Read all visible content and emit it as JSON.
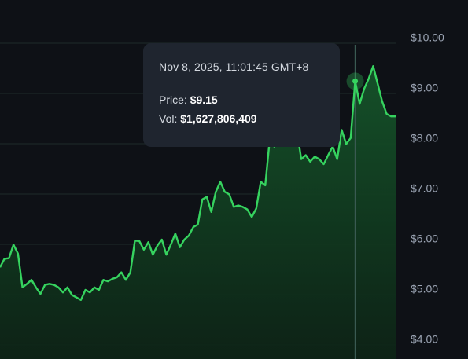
{
  "chart_data": {
    "type": "area",
    "ylim": [
      3.8,
      10.1
    ],
    "y_ticks": [
      "$10.00",
      "$9.00",
      "$8.00",
      "$7.00",
      "$6.00",
      "$5.00",
      "$4.00"
    ],
    "y_tick_values": [
      10,
      9,
      8,
      7,
      6,
      5,
      4
    ],
    "grid": true,
    "series": [
      {
        "values": [
          5.45,
          5.62,
          5.63,
          5.9,
          5.72,
          5.05,
          5.12,
          5.2,
          5.05,
          4.92,
          5.1,
          5.12,
          5.1,
          5.05,
          4.95,
          5.05,
          4.9,
          4.85,
          4.8,
          5.0,
          4.95,
          5.05,
          5.0,
          5.2,
          5.17,
          5.22,
          5.25,
          5.35,
          5.2,
          5.35,
          5.98,
          5.97,
          5.8,
          5.95,
          5.7,
          5.88,
          6.0,
          5.7,
          5.9,
          6.12,
          5.85,
          6.0,
          6.08,
          6.25,
          6.3,
          6.8,
          6.85,
          6.55,
          6.95,
          7.15,
          6.95,
          6.9,
          6.65,
          6.68,
          6.65,
          6.6,
          6.45,
          6.62,
          7.15,
          7.08,
          8.0,
          7.85,
          8.25,
          8.4,
          8.6,
          8.65,
          8.2,
          7.6,
          7.68,
          7.55,
          7.65,
          7.6,
          7.5,
          7.68,
          7.85,
          7.6,
          8.18,
          7.9,
          8.02,
          9.15,
          8.7,
          9.0,
          9.2,
          9.45,
          9.1,
          8.75,
          8.5,
          8.45,
          8.45
        ],
        "color": "#36d35f"
      }
    ],
    "highlight_index": 79
  },
  "tooltip": {
    "date": "Nov 8, 2025, 11:01:45 GMT+8",
    "price_label": "Price:",
    "price_value": "$9.15",
    "vol_label": "Vol:",
    "vol_value": "$1,627,806,409"
  },
  "colors": {
    "background": "#0e1116",
    "grid": "#1f2a2a",
    "line": "#36d35f",
    "crosshair": "#3a5a52"
  }
}
